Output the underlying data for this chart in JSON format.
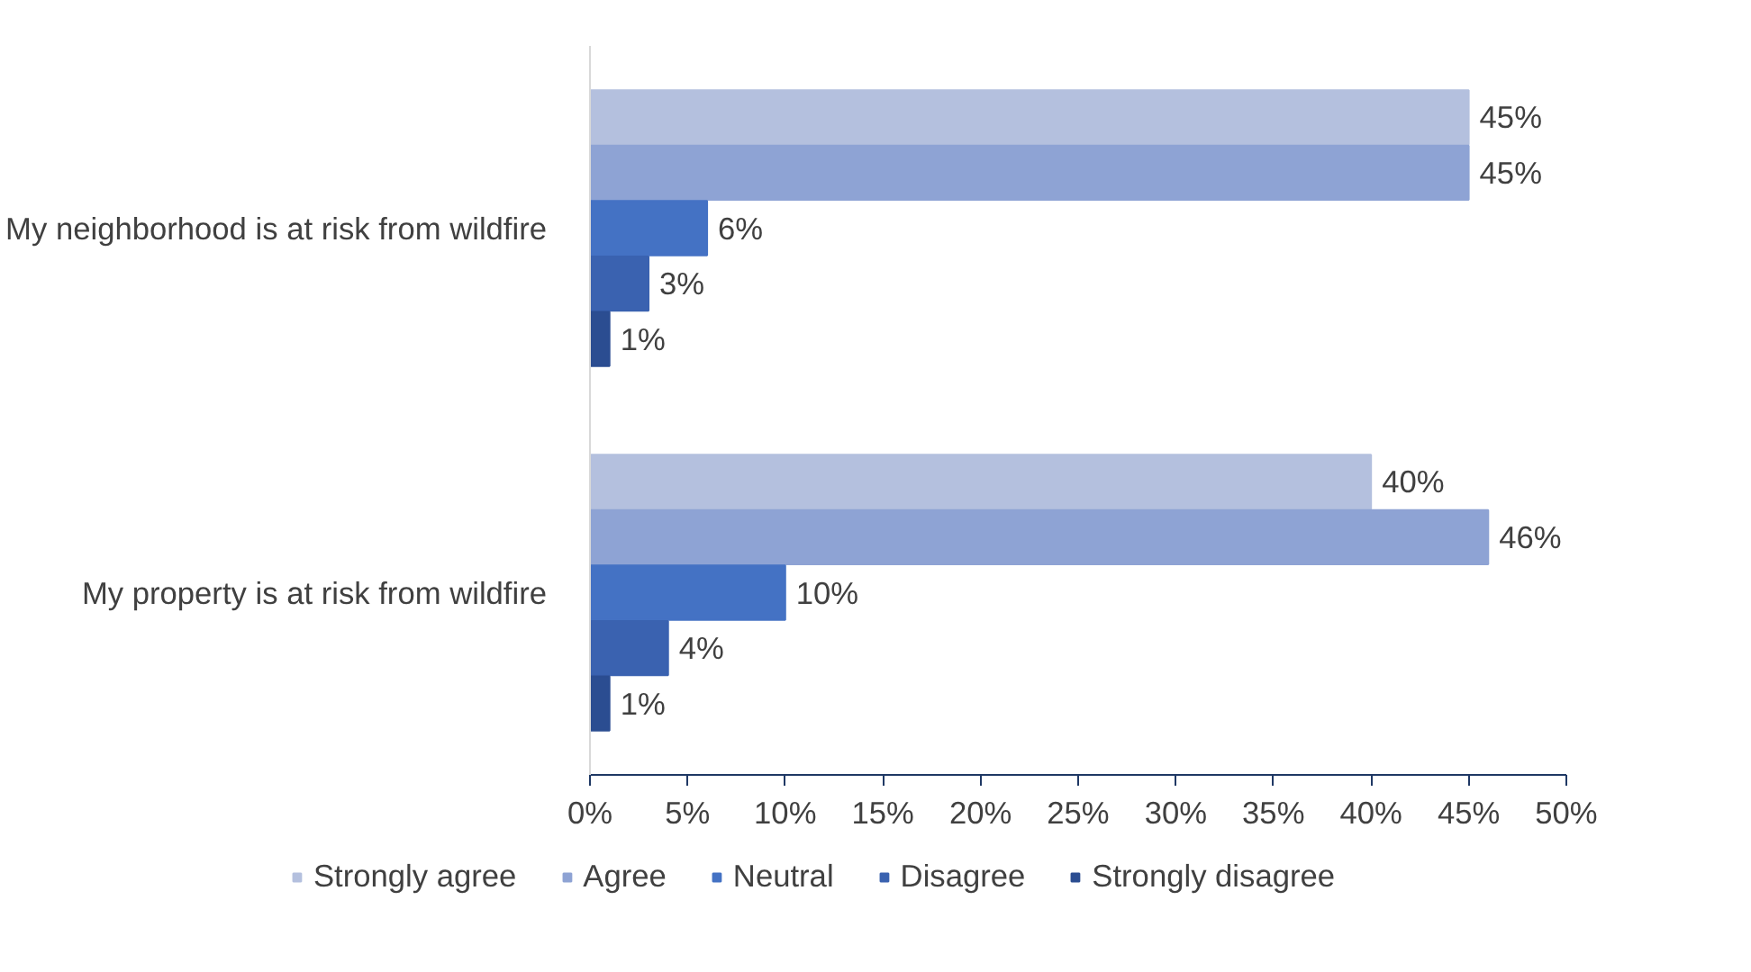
{
  "chart_data": {
    "type": "bar",
    "orientation": "horizontal",
    "categories": [
      "My neighborhood is at risk from wildfire",
      "My property is at risk from wildfire"
    ],
    "series": [
      {
        "name": "Strongly agree",
        "color": "#b4c0de",
        "values": [
          45,
          40
        ],
        "value_labels": [
          "45%",
          "40%"
        ]
      },
      {
        "name": "Agree",
        "color": "#8ea3d4",
        "values": [
          45,
          46
        ],
        "value_labels": [
          "45%",
          "46%"
        ]
      },
      {
        "name": "Neutral",
        "color": "#4472c4",
        "values": [
          6,
          10
        ],
        "value_labels": [
          "6%",
          "10%"
        ]
      },
      {
        "name": "Disagree",
        "color": "#3a62b0",
        "values": [
          3,
          4
        ],
        "value_labels": [
          "3%",
          "4%"
        ]
      },
      {
        "name": "Strongly disagree",
        "color": "#2b4d91",
        "values": [
          1,
          1
        ],
        "value_labels": [
          "1%",
          "1%"
        ]
      }
    ],
    "xlim": [
      0,
      50
    ],
    "xticks": [
      {
        "value": 0,
        "label": "0%"
      },
      {
        "value": 5,
        "label": "5%"
      },
      {
        "value": 10,
        "label": "10%"
      },
      {
        "value": 15,
        "label": "15%"
      },
      {
        "value": 20,
        "label": "20%"
      },
      {
        "value": 25,
        "label": "25%"
      },
      {
        "value": 30,
        "label": "30%"
      },
      {
        "value": 35,
        "label": "35%"
      },
      {
        "value": 40,
        "label": "40%"
      },
      {
        "value": 45,
        "label": "45%"
      },
      {
        "value": 50,
        "label": "50%"
      }
    ],
    "grid": false,
    "legend": "bottom"
  }
}
